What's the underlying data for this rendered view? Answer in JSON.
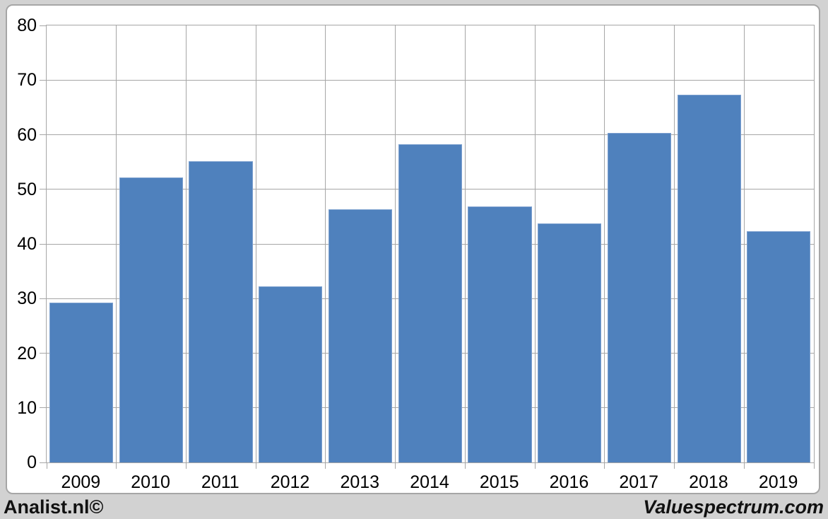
{
  "chart_data": {
    "type": "bar",
    "title": "",
    "xlabel": "",
    "ylabel": "",
    "categories": [
      "2009",
      "2010",
      "2011",
      "2012",
      "2013",
      "2014",
      "2015",
      "2016",
      "2017",
      "2018",
      "2019"
    ],
    "values": [
      29.2,
      52.2,
      55.2,
      32.2,
      46.3,
      58.3,
      46.9,
      43.8,
      60.3,
      67.3,
      42.3
    ],
    "ylim": [
      0,
      80
    ],
    "ytick_step": 10,
    "ytick_labels": [
      "80",
      "70",
      "60",
      "50",
      "40",
      "30",
      "20",
      "10",
      "0"
    ],
    "grid": true,
    "legend": "none",
    "bar_color": "#4f81bd",
    "bar_border_color": "#7ca0cf",
    "grid_color": "#a6a6a6",
    "plot_bg": "#ffffff",
    "page_bg": "#d2d2d2"
  },
  "branding": {
    "left_text": "Analist.nl©",
    "right_text": "Valuespectrum.com"
  }
}
